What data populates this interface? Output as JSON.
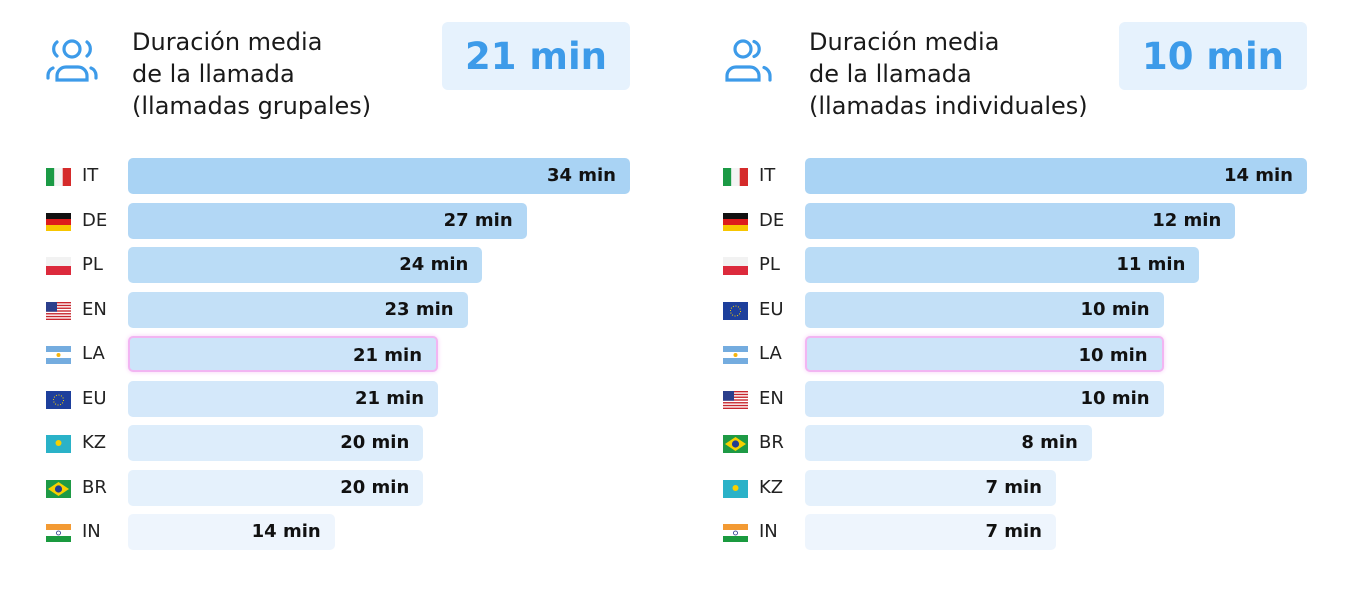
{
  "chart_data": [
    {
      "type": "bar",
      "orientation": "horizontal",
      "title": "Duración media\nde la llamada\n(llamadas grupales)",
      "summary_value": "21 min",
      "icon": "group-users-icon",
      "categories": [
        "IT",
        "DE",
        "PL",
        "EN",
        "LA",
        "EU",
        "KZ",
        "BR",
        "IN"
      ],
      "flags": [
        "it",
        "de",
        "pl",
        "us",
        "ar",
        "eu",
        "kz",
        "br",
        "in"
      ],
      "values": [
        34,
        27,
        24,
        23,
        21,
        21,
        20,
        20,
        14
      ],
      "labels": [
        "34 min",
        "27 min",
        "24 min",
        "23 min",
        "21 min",
        "21 min",
        "20 min",
        "20 min",
        "14 min"
      ],
      "unit": "min",
      "highlighted": "LA"
    },
    {
      "type": "bar",
      "orientation": "horizontal",
      "title": "Duración media\nde la llamada\n(llamadas individuales)",
      "summary_value": "10 min",
      "icon": "users-icon",
      "categories": [
        "IT",
        "DE",
        "PL",
        "EU",
        "LA",
        "EN",
        "BR",
        "KZ",
        "IN"
      ],
      "flags": [
        "it",
        "de",
        "pl",
        "eu",
        "ar",
        "us",
        "br",
        "kz",
        "in"
      ],
      "values": [
        14,
        12,
        11,
        10,
        10,
        10,
        8,
        7,
        7
      ],
      "labels": [
        "14 min",
        "12 min",
        "11 min",
        "10 min",
        "10 min",
        "10 min",
        "8 min",
        "7 min",
        "7 min"
      ],
      "unit": "min",
      "highlighted": "LA"
    }
  ],
  "colors": {
    "accent": "#3d9be9",
    "kpi_bg": "#e6f2fd",
    "bar_top": "#a9d3f4",
    "bar_bottom": "#eef5fd",
    "highlight_border": "#f2b5f2"
  }
}
